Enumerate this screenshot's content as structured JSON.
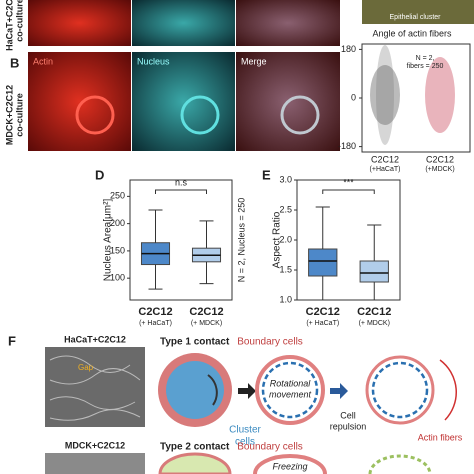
{
  "panelA": {
    "row_label": "HaCaT+C2C12",
    "row_label2": "co-culture",
    "inset": "Epithelial cluster"
  },
  "panelB": {
    "letter": "B",
    "row_label": "MDCK+C2C12",
    "row_label2": "co-culture",
    "images": [
      "Actin",
      "Nucleus",
      "Merge"
    ]
  },
  "angle": {
    "title": "Angle of actin fibers",
    "annotation": [
      "N = 2,",
      "fibers = 250"
    ],
    "yticks": [
      180,
      0,
      -180
    ],
    "ylim": [
      -200,
      200
    ],
    "categories": [
      [
        "C2C12",
        "(+HaCaT)"
      ],
      [
        "C2C12",
        "(+MDCK)"
      ]
    ],
    "colors": [
      "#555555",
      "#d46a7a"
    ]
  },
  "chart_data": [
    {
      "type": "box",
      "letter": "D",
      "ylabel": "Nucleus Area[μm²]",
      "annotation": "N = 2, Nucleus = 250",
      "significance": "n.s",
      "categories": [
        [
          "C2C12",
          "(+ HaCaT)"
        ],
        [
          "C2C12",
          "(+ MDCK)"
        ]
      ],
      "color": "#3a7cc4",
      "ylim": [
        60,
        280
      ],
      "yticks": [
        100,
        150,
        200,
        250
      ],
      "boxes": [
        {
          "min": 80,
          "q1": 125,
          "median": 145,
          "q3": 165,
          "max": 225
        },
        {
          "min": 90,
          "q1": 130,
          "median": 142,
          "q3": 155,
          "max": 205
        }
      ]
    },
    {
      "type": "box",
      "letter": "E",
      "ylabel": "Aspect Ratio",
      "significance": "***",
      "categories": [
        [
          "C2C12",
          "(+ HaCaT)"
        ],
        [
          "C2C12",
          "(+ MDCK)"
        ]
      ],
      "color": "#3a7cc4",
      "ylim": [
        1.0,
        3.0
      ],
      "yticks": [
        {
          "value": 1.0,
          "label": "1.0"
        },
        {
          "value": 1.5,
          "label": "1.5"
        },
        {
          "value": 2.0,
          "label": "2.0"
        },
        {
          "value": 2.5,
          "label": "2.5"
        },
        {
          "value": 3.0,
          "label": "3.0"
        }
      ],
      "boxes": [
        {
          "min": 1.0,
          "q1": 1.4,
          "median": 1.65,
          "q3": 1.85,
          "max": 2.55
        },
        {
          "min": 1.0,
          "q1": 1.3,
          "median": 1.45,
          "q3": 1.65,
          "max": 2.25
        }
      ]
    }
  ],
  "panelF": {
    "letter": "F",
    "img1": "HaCaT+C2C12",
    "gap": "Gap",
    "img2": "MDCK+C2C12",
    "type1": "Type 1 contact",
    "type2": "Type 2 contact",
    "boundary": "Boundary cells",
    "boundary2": "Boundary cells",
    "rotational": [
      "Rotational",
      "movement"
    ],
    "cluster": [
      "Cluster",
      "cells"
    ],
    "repulsion": [
      "Cell",
      "repulsion"
    ],
    "actin": "Actin fibers",
    "freezing": "Freezing"
  }
}
